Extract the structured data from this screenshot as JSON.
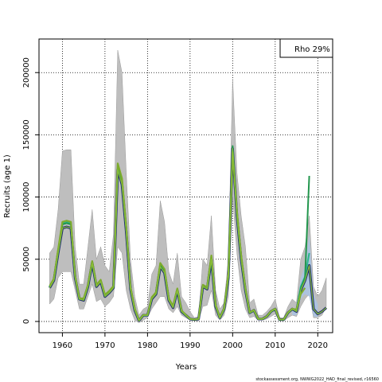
{
  "chart_data": {
    "type": "line",
    "title": "",
    "xlabel": "Years",
    "ylabel": "Recruits (age 1)",
    "xlim": [
      1954.5,
      2023.5
    ],
    "ylim": [
      -9000,
      227000
    ],
    "x_ticks": [
      1960,
      1970,
      1980,
      1990,
      2000,
      2010,
      2020
    ],
    "y_ticks": [
      0,
      50000,
      100000,
      150000,
      200000
    ],
    "grid": true,
    "legend": {
      "position": "top-right",
      "text": "Rho 29%"
    },
    "credit": "stockassessment.org, NWWG2022_HAD_final_revised, r16560",
    "colors": {
      "band": "#bebebe",
      "band_edge": "#9a9a9a",
      "retro_band": "#a9c4e4",
      "base": "#1f2e6e",
      "retro": [
        "#2bb58a",
        "#22964d",
        "#7dab2c",
        "#1d7a3a"
      ]
    },
    "band": {
      "x": [
        1957,
        1958,
        1959,
        1960,
        1961,
        1962,
        1963,
        1964,
        1965,
        1966,
        1967,
        1968,
        1969,
        1970,
        1971,
        1972,
        1973,
        1974,
        1975,
        1976,
        1977,
        1978,
        1979,
        1980,
        1981,
        1982,
        1983,
        1984,
        1985,
        1986,
        1987,
        1988,
        1989,
        1990,
        1991,
        1992,
        1993,
        1994,
        1995,
        1996,
        1997,
        1998,
        1999,
        2000,
        2001,
        2002,
        2003,
        2004,
        2005,
        2006,
        2007,
        2008,
        2009,
        2010,
        2011,
        2012,
        2013,
        2014,
        2015,
        2016,
        2017,
        2018,
        2019,
        2020,
        2021,
        2022
      ],
      "low": [
        14000,
        18000,
        35000,
        40000,
        40000,
        40000,
        25000,
        10000,
        10000,
        20000,
        30000,
        16000,
        18000,
        12000,
        15000,
        20000,
        60000,
        55000,
        25000,
        10000,
        1000,
        -1000,
        1000,
        3000,
        10000,
        15000,
        20000,
        20000,
        10000,
        7000,
        12000,
        5000,
        3000,
        1000,
        500,
        500,
        12000,
        13000,
        25000,
        5000,
        1000,
        5000,
        20000,
        100000,
        55000,
        25000,
        10000,
        3000,
        4000,
        1000,
        1000,
        2000,
        4000,
        6000,
        500,
        500,
        3000,
        5000,
        4000,
        12000,
        18000,
        22000,
        3000,
        3000,
        5000,
        12000
      ],
      "high": [
        55000,
        60000,
        90000,
        137000,
        138000,
        138000,
        60000,
        30000,
        30000,
        60000,
        90000,
        50000,
        60000,
        45000,
        40000,
        70000,
        218000,
        200000,
        120000,
        50000,
        20000,
        5000,
        10000,
        12000,
        38000,
        45000,
        97000,
        80000,
        40000,
        30000,
        55000,
        20000,
        15000,
        8000,
        3000,
        4000,
        50000,
        45000,
        85000,
        25000,
        10000,
        15000,
        50000,
        195000,
        120000,
        85000,
        60000,
        15000,
        18000,
        5000,
        5000,
        8000,
        12000,
        18000,
        3000,
        3000,
        12000,
        18000,
        15000,
        50000,
        60000,
        85000,
        28000,
        20000,
        25000,
        35000
      ]
    },
    "retro_band": {
      "x": [
        2014,
        2015,
        2016,
        2017,
        2018,
        2019,
        2020
      ],
      "low": [
        5000,
        5000,
        18000,
        22000,
        20000,
        4000,
        3500
      ],
      "high": [
        10000,
        8000,
        35000,
        45000,
        70000,
        22000,
        14000
      ]
    },
    "series": [
      {
        "x": [
          1957,
          1958,
          1959,
          1960,
          1961,
          1962,
          1963,
          1964,
          1965,
          1966,
          1967,
          1968,
          1969,
          1970,
          1971,
          1972,
          1973,
          1974,
          1975,
          1976,
          1977,
          1978,
          1979,
          1980,
          1981,
          1982,
          1983,
          1984,
          1985,
          1986,
          1987,
          1988,
          1989,
          1990,
          1991,
          1992,
          1993,
          1994,
          1995,
          1996,
          1997,
          1998,
          1999,
          2000,
          2001,
          2002,
          2003,
          2004,
          2005,
          2006,
          2007,
          2008,
          2009,
          2010,
          2011,
          2012,
          2013,
          2014,
          2015,
          2016,
          2017,
          2018,
          2019,
          2020,
          2021,
          2022
        ],
        "y": [
          27000,
          33000,
          55000,
          75000,
          76000,
          75000,
          35000,
          18000,
          17000,
          28000,
          47000,
          28000,
          32000,
          20000,
          23000,
          27000,
          122000,
          110000,
          72000,
          26000,
          9000,
          700,
          5000,
          5000,
          18000,
          22000,
          44000,
          39000,
          17000,
          11000,
          25000,
          8000,
          5000,
          2000,
          1500,
          2000,
          28000,
          26000,
          50000,
          12000,
          3000,
          10000,
          35000,
          139000,
          85000,
          50000,
          25000,
          7000,
          9000,
          2000,
          2000,
          4000,
          8000,
          10000,
          1500,
          1500,
          7000,
          10000,
          8000,
          25000,
          33000,
          45000,
          10000,
          6000,
          8000,
          11000
        ]
      },
      {
        "x": [
          1957,
          1958,
          1959,
          1960,
          1961,
          1962,
          1963,
          1964,
          1965,
          1966,
          1967,
          1968,
          1969,
          1970,
          1971,
          1972,
          1973,
          1974,
          1975,
          1976,
          1977,
          1978,
          1979,
          1980,
          1981,
          1982,
          1983,
          1984,
          1985,
          1986,
          1987,
          1988,
          1989,
          1990,
          1991,
          1992,
          1993,
          1994,
          1995,
          1996,
          1997,
          1998,
          1999,
          2000,
          2001,
          2002,
          2003,
          2004,
          2005,
          2006,
          2007,
          2008,
          2009,
          2010,
          2011,
          2012,
          2013,
          2014,
          2015,
          2016,
          2017,
          2018
        ],
        "y": [
          28000,
          34000,
          57000,
          79000,
          80000,
          79000,
          36000,
          18000,
          18000,
          29000,
          48000,
          29000,
          33000,
          21000,
          24000,
          28000,
          126000,
          114000,
          75000,
          27000,
          10000,
          800,
          5000,
          5000,
          19000,
          23000,
          46000,
          41000,
          18000,
          12000,
          26000,
          8500,
          5000,
          2000,
          1500,
          2000,
          29000,
          27000,
          52000,
          13000,
          3000,
          10000,
          37000,
          137000,
          88000,
          52000,
          26000,
          7000,
          9000,
          2000,
          2000,
          4000,
          8000,
          10000,
          1500,
          1500,
          7000,
          10000,
          9000,
          28000,
          36000,
          55000
        ]
      },
      {
        "x": [
          1957,
          1958,
          1959,
          1960,
          1961,
          1962,
          1963,
          1964,
          1965,
          1966,
          1967,
          1968,
          1969,
          1970,
          1971,
          1972,
          1973,
          1974,
          1975,
          1976,
          1977,
          1978,
          1979,
          1980,
          1981,
          1982,
          1983,
          1984,
          1985,
          1986,
          1987,
          1988,
          1989,
          1990,
          1991,
          1992,
          1993,
          1994,
          1995,
          1996,
          1997,
          1998,
          1999,
          2000,
          2001,
          2002,
          2003,
          2004,
          2005,
          2006,
          2007,
          2008,
          2009,
          2010,
          2011,
          2012,
          2013,
          2014,
          2015,
          2016,
          2017,
          2018
        ],
        "y": [
          27500,
          33500,
          56000,
          78000,
          79000,
          78000,
          35500,
          18000,
          17500,
          28500,
          47500,
          28500,
          32500,
          20500,
          23500,
          27500,
          124000,
          112000,
          74000,
          26500,
          9500,
          750,
          5000,
          5000,
          18500,
          22500,
          45000,
          40000,
          17500,
          11500,
          25500,
          8200,
          5000,
          2000,
          1500,
          2000,
          28500,
          26500,
          51000,
          12500,
          3000,
          10000,
          36000,
          141000,
          86000,
          51000,
          25500,
          7000,
          9000,
          2000,
          2000,
          4000,
          8000,
          10000,
          1500,
          1500,
          7000,
          10000,
          8500,
          26000,
          35000,
          117000
        ]
      },
      {
        "x": [
          1957,
          1958,
          1959,
          1960,
          1961,
          1962,
          1963,
          1964,
          1965,
          1966,
          1967,
          1968,
          1969,
          1970,
          1971,
          1972,
          1973,
          1974,
          1975,
          1976,
          1977,
          1978,
          1979,
          1980,
          1981,
          1982,
          1983,
          1984,
          1985,
          1986,
          1987,
          1988,
          1989,
          1990,
          1991,
          1992,
          1993,
          1994,
          1995,
          1996,
          1997,
          1998,
          1999,
          2000,
          2001,
          2002,
          2003,
          2004,
          2005,
          2006,
          2007,
          2008,
          2009,
          2010,
          2011,
          2012,
          2013,
          2014,
          2015,
          2016,
          2017
        ],
        "y": [
          28500,
          34500,
          58000,
          80000,
          81000,
          80000,
          36500,
          18500,
          18500,
          29500,
          48500,
          29500,
          33500,
          21500,
          24500,
          28500,
          127000,
          115000,
          76000,
          27500,
          10500,
          850,
          5200,
          5200,
          19500,
          23500,
          47000,
          42000,
          18500,
          12500,
          26500,
          8800,
          5200,
          2100,
          1600,
          2100,
          29500,
          27500,
          53000,
          13500,
          3200,
          10500,
          38000,
          136000,
          89000,
          53000,
          26500,
          7200,
          9200,
          2100,
          2100,
          4100,
          8200,
          10200,
          1600,
          1600,
          7200,
          10200,
          9500,
          22000,
          27000
        ]
      }
    ]
  }
}
